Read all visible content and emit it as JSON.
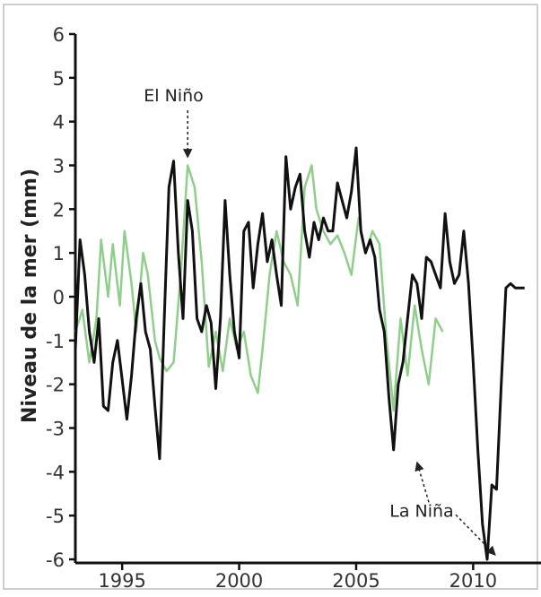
{
  "chart_data": {
    "type": "line",
    "ylabel": "Niveau de la mer (mm)",
    "xlim": [
      1993.0,
      2012.9
    ],
    "ylim": [
      -6,
      6
    ],
    "yticks": [
      6,
      5,
      4,
      3,
      2,
      1,
      0,
      -1,
      -2,
      -3,
      -4,
      -5,
      -6
    ],
    "xticks": [
      1995,
      2000,
      2005,
      2010
    ],
    "grid": false,
    "series": [
      {
        "color": "#8fcf8a",
        "x": [
          1993.0,
          1993.3,
          1993.6,
          1993.9,
          1994.1,
          1994.4,
          1994.6,
          1994.9,
          1995.1,
          1995.4,
          1995.6,
          1995.9,
          1996.1,
          1996.4,
          1996.6,
          1996.9,
          1997.2,
          1997.5,
          1997.8,
          1998.1,
          1998.4,
          1998.7,
          1999.0,
          1999.3,
          1999.6,
          1999.9,
          2000.2,
          2000.5,
          2000.8,
          2001.0,
          2001.3,
          2001.6,
          2001.9,
          2002.2,
          2002.5,
          2002.8,
          2003.1,
          2003.3,
          2003.6,
          2003.9,
          2004.2,
          2004.5,
          2004.8,
          2005.1,
          2005.4,
          2005.7,
          2006.0,
          2006.3,
          2006.6,
          2006.9,
          2007.2,
          2007.5,
          2007.8,
          2008.1,
          2008.4,
          2008.7
        ],
        "y": [
          -0.8,
          -0.3,
          -1.5,
          -0.5,
          1.3,
          0.0,
          1.2,
          -0.2,
          1.5,
          0.3,
          -0.8,
          1.0,
          0.5,
          -1.0,
          -1.4,
          -1.7,
          -1.5,
          0.5,
          3.0,
          2.5,
          0.8,
          -1.6,
          -0.8,
          -1.7,
          -0.5,
          -1.2,
          -0.8,
          -1.8,
          -2.2,
          -1.2,
          0.5,
          1.5,
          0.8,
          0.5,
          -0.2,
          2.5,
          3.0,
          2.0,
          1.5,
          1.2,
          1.4,
          1.0,
          0.5,
          1.8,
          1.0,
          1.5,
          1.2,
          -1.0,
          -2.6,
          -0.5,
          -1.8,
          -0.2,
          -1.2,
          -2.0,
          -0.5,
          -0.8
        ]
      },
      {
        "color": "#111111",
        "x": [
          1993.0,
          1993.2,
          1993.4,
          1993.6,
          1993.8,
          1994.0,
          1994.2,
          1994.4,
          1994.6,
          1994.8,
          1995.0,
          1995.2,
          1995.4,
          1995.6,
          1995.8,
          1996.0,
          1996.2,
          1996.4,
          1996.6,
          1996.8,
          1997.0,
          1997.2,
          1997.4,
          1997.6,
          1997.8,
          1998.0,
          1998.2,
          1998.4,
          1998.6,
          1998.8,
          1999.0,
          1999.2,
          1999.4,
          1999.6,
          1999.8,
          2000.0,
          2000.2,
          2000.4,
          2000.6,
          2000.8,
          2001.0,
          2001.2,
          2001.4,
          2001.6,
          2001.8,
          2002.0,
          2002.2,
          2002.4,
          2002.6,
          2002.8,
          2003.0,
          2003.2,
          2003.4,
          2003.6,
          2003.8,
          2004.0,
          2004.2,
          2004.4,
          2004.6,
          2004.8,
          2005.0,
          2005.2,
          2005.4,
          2005.6,
          2005.8,
          2006.0,
          2006.2,
          2006.4,
          2006.6,
          2006.8,
          2007.0,
          2007.2,
          2007.4,
          2007.6,
          2007.8,
          2008.0,
          2008.2,
          2008.4,
          2008.6,
          2008.8,
          2009.0,
          2009.2,
          2009.4,
          2009.6,
          2009.8,
          2010.0,
          2010.2,
          2010.4,
          2010.6,
          2010.8,
          2011.0,
          2011.2,
          2011.4,
          2011.6,
          2011.8,
          2012.0,
          2012.2
        ],
        "y": [
          -1.2,
          1.3,
          0.5,
          -0.8,
          -1.5,
          -0.5,
          -2.5,
          -2.6,
          -1.5,
          -1.0,
          -1.9,
          -2.8,
          -1.8,
          -0.5,
          0.3,
          -0.8,
          -1.2,
          -2.5,
          -3.7,
          -0.5,
          2.5,
          3.1,
          1.0,
          -0.5,
          2.2,
          1.5,
          -0.5,
          -0.8,
          -0.2,
          -0.6,
          -2.1,
          -0.5,
          2.2,
          0.5,
          -0.8,
          -1.4,
          1.5,
          1.7,
          0.2,
          1.2,
          1.9,
          0.8,
          1.3,
          0.5,
          -0.2,
          3.2,
          2.0,
          2.5,
          2.8,
          1.5,
          0.9,
          1.7,
          1.3,
          1.8,
          1.5,
          1.5,
          2.6,
          2.2,
          1.8,
          2.4,
          3.4,
          1.5,
          1.0,
          1.3,
          0.9,
          -0.3,
          -0.8,
          -2.3,
          -3.5,
          -2.0,
          -1.5,
          -0.5,
          0.5,
          0.3,
          -0.5,
          0.9,
          0.8,
          0.5,
          0.2,
          1.9,
          0.8,
          0.3,
          0.5,
          1.5,
          0.3,
          -1.5,
          -3.5,
          -5.2,
          -6.0,
          -4.3,
          -4.4,
          -2.0,
          0.2,
          0.3,
          0.2,
          0.2,
          0.2
        ]
      }
    ],
    "annotations": [
      {
        "text": "El Niño",
        "x": 1997.8,
        "y": 3.1,
        "label_x": 1997.2,
        "label_y": 4.3
      },
      {
        "text": "La Niña",
        "x": 2007.6,
        "y": -3.7,
        "x2": 2011.1,
        "y2": -5.9,
        "label_x": 2007.8,
        "label_y": -4.9
      }
    ]
  }
}
